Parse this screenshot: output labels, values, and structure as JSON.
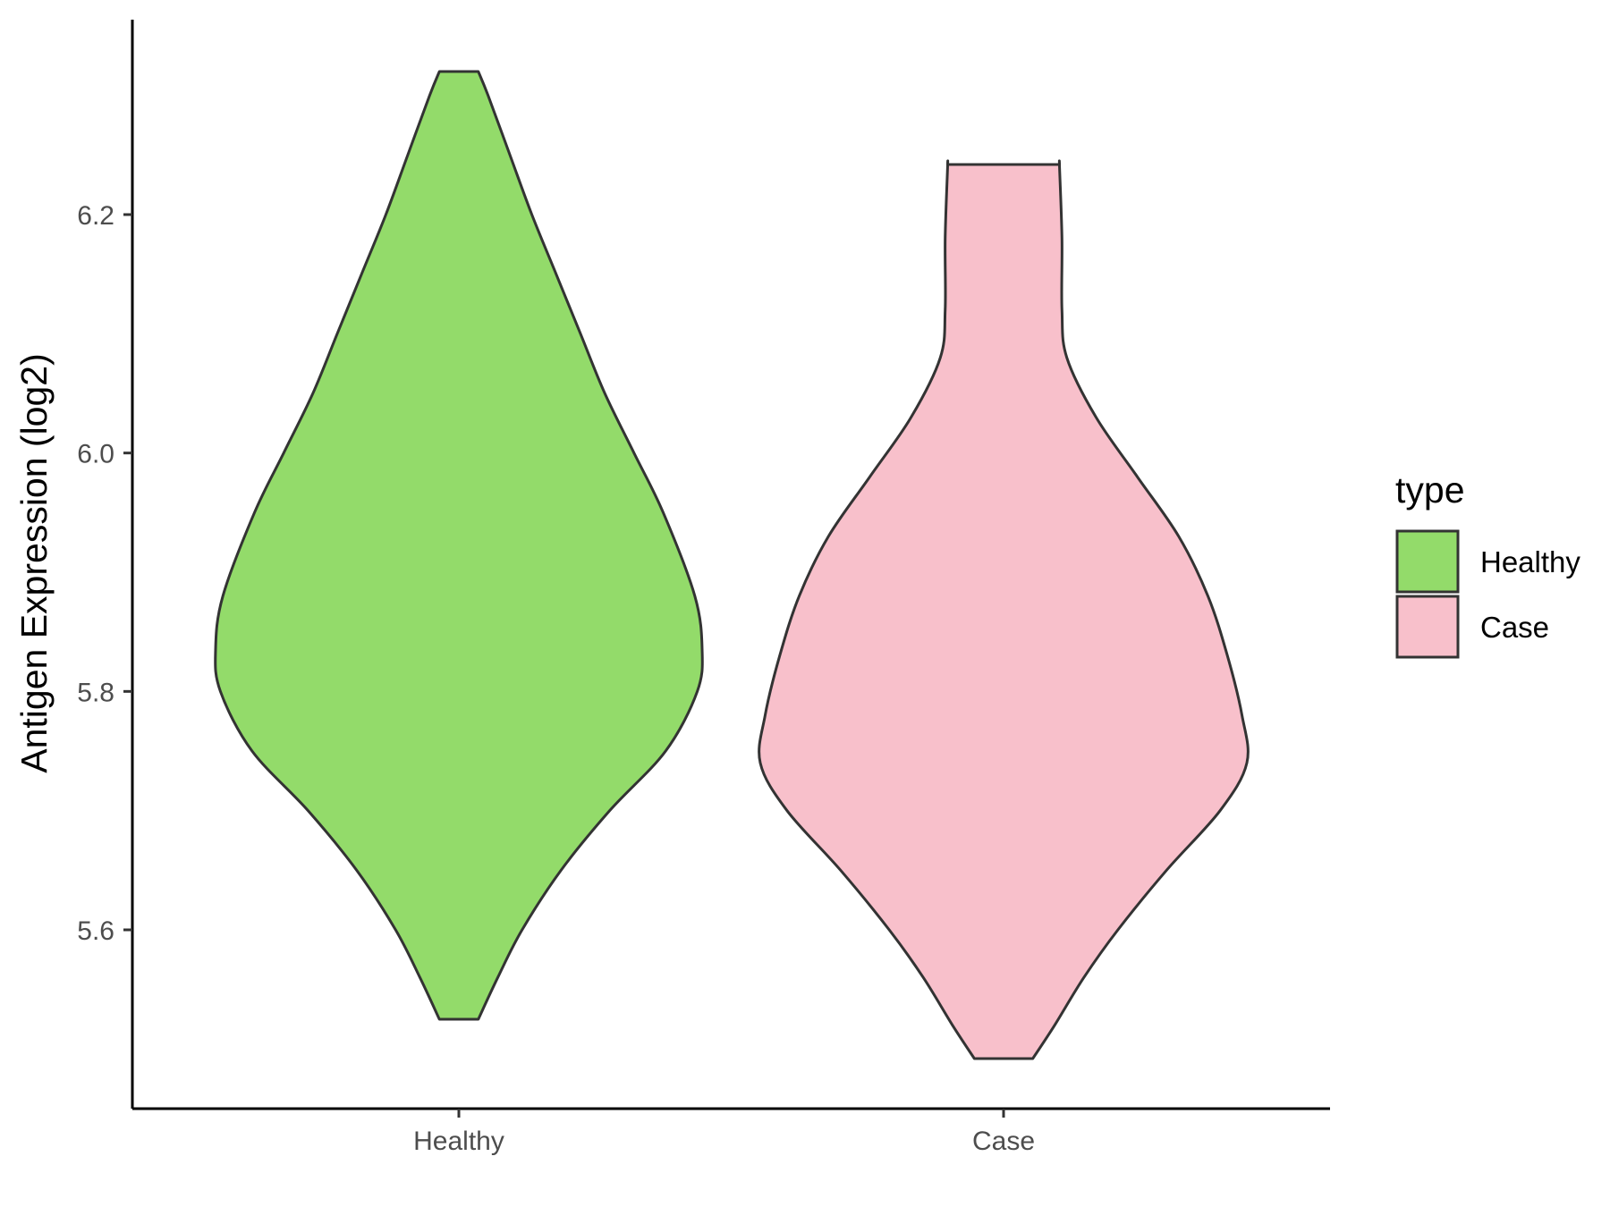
{
  "chart_data": {
    "type": "violin",
    "ylabel": "Antigen Expression (log2)",
    "xlabel": "",
    "ylim": [
      5.455,
      6.365
    ],
    "yticks": [
      5.6,
      5.8,
      6.0,
      6.2
    ],
    "ytick_labels": [
      "5.6",
      "5.8",
      "6.0",
      "6.2"
    ],
    "categories": [
      "Healthy",
      "Case"
    ],
    "grid": false,
    "legend": {
      "title": "type",
      "position": "right",
      "entries": [
        {
          "label": "Healthy",
          "color": "#93DB6A"
        },
        {
          "label": "Case",
          "color": "#F8C0CB"
        }
      ]
    },
    "series": [
      {
        "name": "Healthy",
        "color": "#93DB6A",
        "y_min": 5.525,
        "y_max": 6.32,
        "density_profile": [
          [
            5.525,
            0.08
          ],
          [
            5.56,
            0.16
          ],
          [
            5.6,
            0.26
          ],
          [
            5.65,
            0.42
          ],
          [
            5.7,
            0.62
          ],
          [
            5.75,
            0.85
          ],
          [
            5.8,
            0.98
          ],
          [
            5.835,
            1.0
          ],
          [
            5.88,
            0.97
          ],
          [
            5.95,
            0.84
          ],
          [
            6.0,
            0.72
          ],
          [
            6.05,
            0.6
          ],
          [
            6.1,
            0.5
          ],
          [
            6.15,
            0.4
          ],
          [
            6.2,
            0.3
          ],
          [
            6.25,
            0.21
          ],
          [
            6.3,
            0.12
          ],
          [
            6.32,
            0.08
          ]
        ]
      },
      {
        "name": "Case",
        "color": "#F8C0CB",
        "y_min": 5.492,
        "y_max": 6.242,
        "density_profile": [
          [
            5.492,
            0.12
          ],
          [
            5.52,
            0.21
          ],
          [
            5.56,
            0.33
          ],
          [
            5.6,
            0.47
          ],
          [
            5.65,
            0.67
          ],
          [
            5.7,
            0.89
          ],
          [
            5.74,
            1.0
          ],
          [
            5.78,
            0.98
          ],
          [
            5.83,
            0.92
          ],
          [
            5.88,
            0.84
          ],
          [
            5.93,
            0.72
          ],
          [
            5.98,
            0.55
          ],
          [
            6.03,
            0.38
          ],
          [
            6.08,
            0.26
          ],
          [
            6.12,
            0.24
          ],
          [
            6.18,
            0.24
          ],
          [
            6.24,
            0.23
          ],
          [
            6.242,
            0.23
          ]
        ]
      }
    ]
  }
}
